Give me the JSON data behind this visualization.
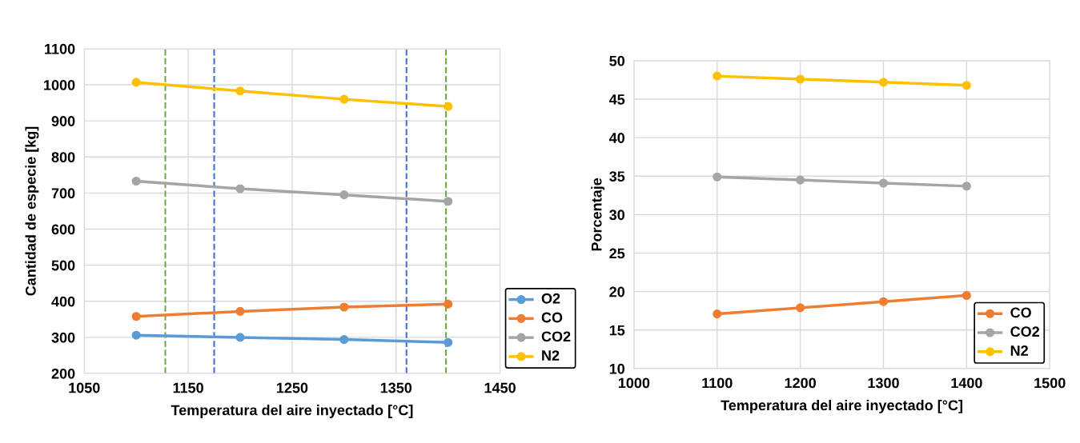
{
  "chart_data": [
    {
      "type": "line",
      "xlabel": "Temperatura del aire inyectado [°C]",
      "ylabel": "Cantidad de especie [kg]",
      "x": [
        1100,
        1200,
        1300,
        1400
      ],
      "series": [
        {
          "name": "O2",
          "color": "#5b9bd5",
          "values": [
            306,
            300,
            294,
            286
          ]
        },
        {
          "name": "CO",
          "color": "#ed7d31",
          "values": [
            358,
            372,
            384,
            392
          ]
        },
        {
          "name": "CO2",
          "color": "#a5a5a5",
          "values": [
            733,
            712,
            695,
            677
          ]
        },
        {
          "name": "N2",
          "color": "#ffc000",
          "values": [
            1007,
            983,
            960,
            940
          ]
        }
      ],
      "xlim": [
        1050,
        1450
      ],
      "xticks": [
        1050,
        1150,
        1250,
        1350,
        1450
      ],
      "ylim": [
        200,
        1100
      ],
      "yticks": [
        200,
        300,
        400,
        500,
        600,
        700,
        800,
        900,
        1000,
        1100
      ],
      "ref_lines": [
        {
          "axis": "x",
          "value": 1175,
          "color": "#4472c4",
          "line_style": "dashed"
        },
        {
          "axis": "x",
          "value": 1360,
          "color": "#4472c4",
          "line_style": "dashed"
        },
        {
          "axis": "x",
          "value": 1128,
          "color": "#70ad47",
          "line_style": "dashed"
        },
        {
          "axis": "x",
          "value": 1398,
          "color": "#70ad47",
          "line_style": "dashed"
        }
      ],
      "grid": true,
      "legend": "right",
      "marker": "circle",
      "line_style": "solid"
    },
    {
      "type": "line",
      "xlabel": "Temperatura del aire inyectado [°C]",
      "ylabel": "Porcentaje",
      "x": [
        1100,
        1200,
        1300,
        1400
      ],
      "series": [
        {
          "name": "CO",
          "color": "#ed7d31",
          "values": [
            17.1,
            17.9,
            18.7,
            19.5
          ]
        },
        {
          "name": "CO2",
          "color": "#a5a5a5",
          "values": [
            34.9,
            34.5,
            34.1,
            33.7
          ]
        },
        {
          "name": "N2",
          "color": "#ffc000",
          "values": [
            48.0,
            47.6,
            47.2,
            46.8
          ]
        }
      ],
      "xlim": [
        1000,
        1500
      ],
      "xticks": [
        1000,
        1100,
        1200,
        1300,
        1400,
        1500
      ],
      "ylim": [
        10,
        50
      ],
      "yticks": [
        10,
        15,
        20,
        25,
        30,
        35,
        40,
        45,
        50
      ],
      "grid": true,
      "legend": "bottom right",
      "marker": "circle",
      "line_style": "solid"
    }
  ]
}
